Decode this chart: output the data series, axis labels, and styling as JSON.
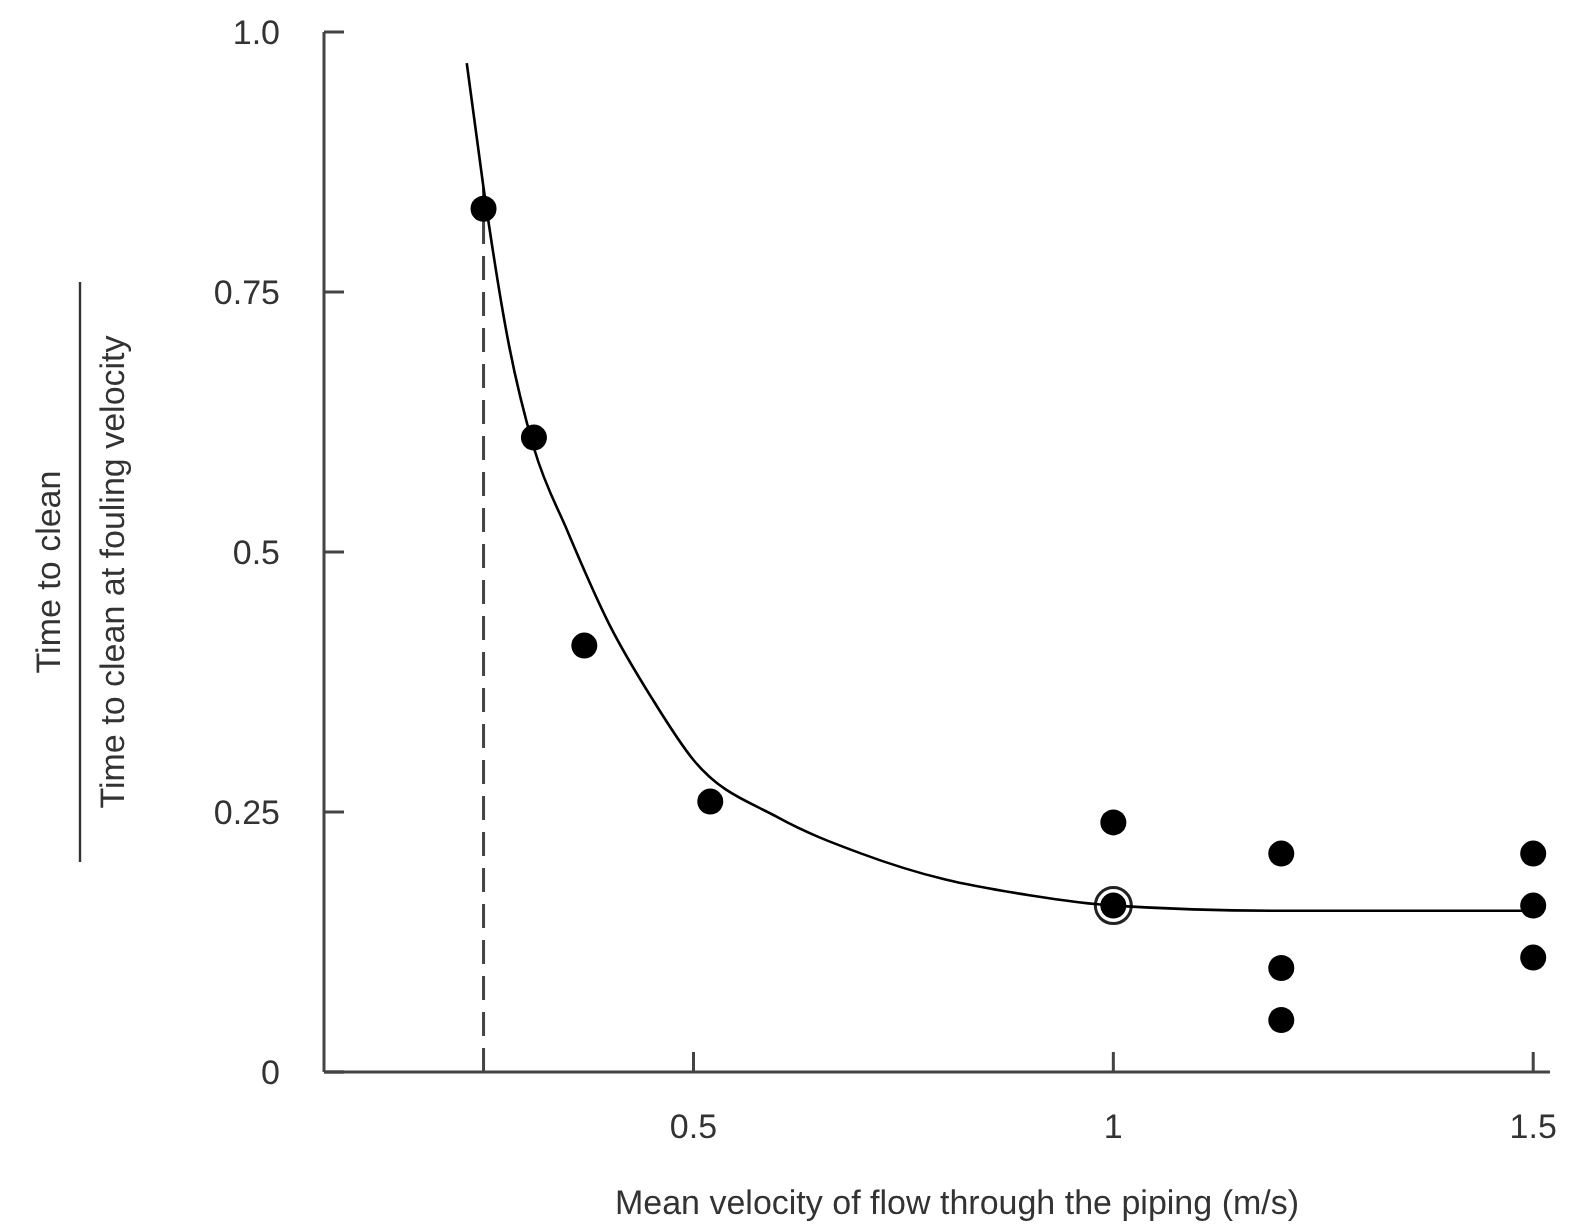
{
  "chart_data": {
    "type": "scatter",
    "xlabel": "Mean velocity of flow through the piping (m/s)",
    "ylabel": "Time to clean\nTime to clean at fouling velocity",
    "xlim": [
      0.06,
      1.52
    ],
    "ylim": [
      0,
      1
    ],
    "xticks": [
      0.5,
      1,
      1.5
    ],
    "yticks": [
      0,
      0.25,
      0.5,
      0.75,
      {
        "value": 1,
        "label": "1.0"
      }
    ],
    "grid": false,
    "marker": "circle",
    "series": [
      {
        "type": "scatter",
        "color": "#000000",
        "x": [
          0.25,
          0.31,
          0.37,
          0.52,
          1.0,
          1.0,
          1.2,
          1.2,
          1.2,
          1.5,
          1.5,
          1.5
        ],
        "values": [
          0.83,
          0.61,
          0.41,
          0.26,
          0.24,
          0.16,
          0.21,
          0.1,
          0.05,
          0.21,
          0.16,
          0.11
        ]
      },
      {
        "type": "scatter",
        "color": "#ffffff",
        "x": [
          1.0
        ],
        "values": [
          0.16
        ]
      },
      {
        "type": "line",
        "color": "#000000",
        "marker": "none",
        "line_style": "solid",
        "x": [
          0.23,
          0.25,
          0.28,
          0.31,
          0.35,
          0.4,
          0.45,
          0.5,
          0.6,
          0.7,
          0.8,
          0.9,
          1.0,
          1.2,
          1.5
        ],
        "values": [
          0.97,
          0.85,
          0.7,
          0.6,
          0.52,
          0.43,
          0.36,
          0.3,
          0.245,
          0.21,
          0.185,
          0.17,
          0.16,
          0.155,
          0.155
        ]
      }
    ],
    "ref_lines": [
      {
        "axis": "x",
        "value": 0.25,
        "line_style": "dashed",
        "color": "#444444"
      }
    ]
  }
}
